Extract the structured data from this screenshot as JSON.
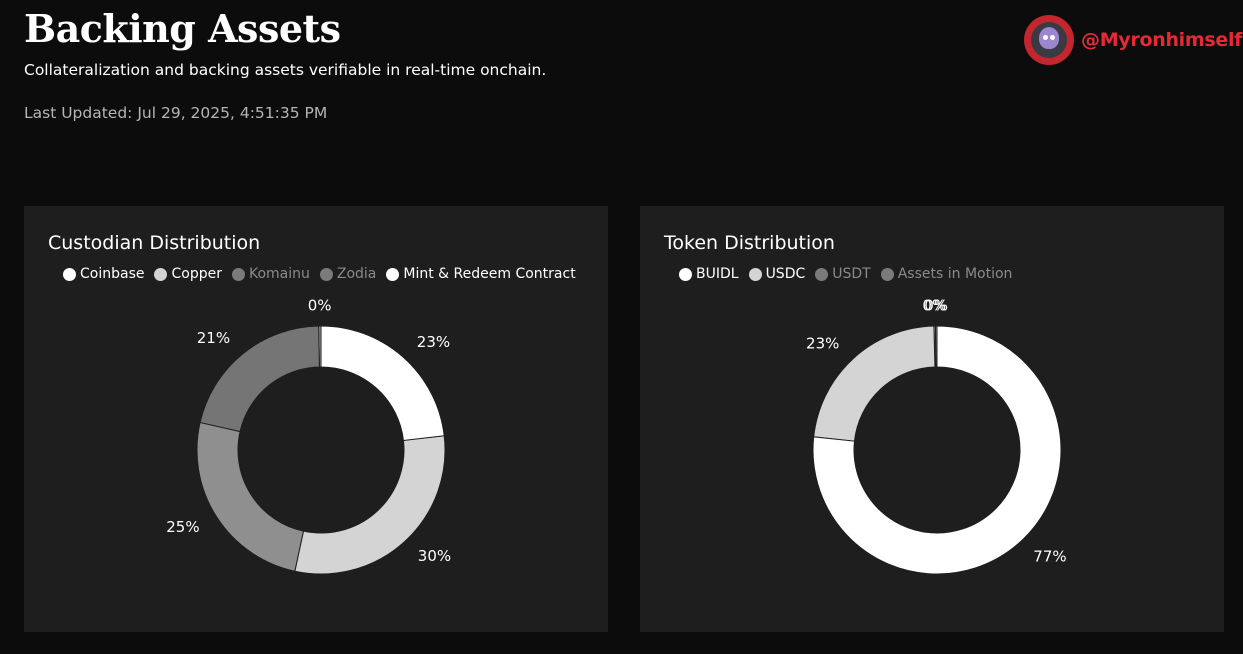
{
  "header": {
    "title": "Backing Assets",
    "subtitle": "Collateralization and backing assets verifiable in real-time onchain.",
    "last_updated": "Last Updated: Jul 29, 2025, 4:51:35 PM"
  },
  "watermark": {
    "handle": "@Myronhimself",
    "color": "#e32a36"
  },
  "chart_data": [
    {
      "type": "pie",
      "title": "Custodian Distribution",
      "style": "donut",
      "categories": [
        "Coinbase",
        "Copper",
        "Komainu",
        "Zodia",
        "Mint & Redeem Contract"
      ],
      "legend_state": [
        "active",
        "active",
        "muted",
        "muted",
        "active"
      ],
      "values": [
        23,
        30,
        25,
        21,
        0.3
      ],
      "labels": [
        "23%",
        "30%",
        "25%",
        "21%",
        "0%"
      ],
      "colors": [
        "#ffffff",
        "#d4d4d4",
        "#8f8f8f",
        "#757575",
        "#a6a6a6"
      ],
      "legend_colors": [
        "#ffffff",
        "#d4d4d4",
        "#7b7b7b",
        "#7b7b7b",
        "#ffffff"
      ],
      "draw_order": [
        4,
        3,
        2,
        1,
        0
      ],
      "legend": "top-left"
    },
    {
      "type": "pie",
      "title": "Token Distribution",
      "style": "donut",
      "categories": [
        "BUIDL",
        "USDC",
        "USDT",
        "Assets in Motion"
      ],
      "legend_state": [
        "active",
        "active",
        "muted",
        "muted"
      ],
      "values": [
        77,
        23,
        0.2,
        0.2
      ],
      "labels": [
        "77%",
        "23%",
        "0%",
        "0%"
      ],
      "colors": [
        "#ffffff",
        "#d4d4d4",
        "#9a9a9a",
        "#8a8a8a"
      ],
      "legend_colors": [
        "#ffffff",
        "#d4d4d4",
        "#7b7b7b",
        "#7b7b7b"
      ],
      "draw_order": [
        2,
        3,
        1,
        0
      ],
      "legend": "top-left"
    }
  ]
}
